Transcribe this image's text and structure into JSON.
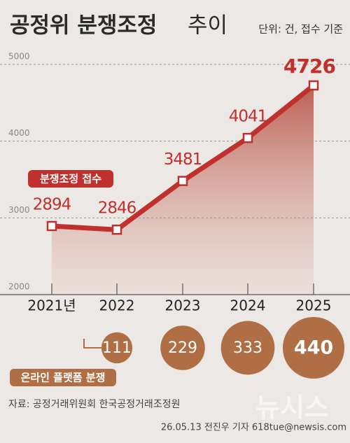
{
  "chart_data": {
    "type": "line",
    "title": "공정위 분쟁조정",
    "title_light": "추이",
    "unit": "단위: 건, 접수 기준",
    "categories": [
      "2021년",
      "2022",
      "2023",
      "2024",
      "2025"
    ],
    "series": [
      {
        "name": "분쟁조정 접수",
        "type": "line",
        "color": "#c0302c",
        "values": [
          2894,
          2846,
          3481,
          4041,
          4726
        ]
      },
      {
        "name": "온라인 플랫폼 분쟁",
        "type": "bubble",
        "color": "#b06e45",
        "values": [
          null,
          111,
          229,
          333,
          440
        ]
      }
    ],
    "ylim": [
      2000,
      5000
    ],
    "yticks": [
      2000,
      3000,
      4000,
      5000
    ],
    "grid": true,
    "source": "자료: 공정거래위원회 한국공정거래조정원",
    "credit": "26.05.13 전진우 기자 618tue@newsis.com",
    "watermark": "뉴시스"
  }
}
